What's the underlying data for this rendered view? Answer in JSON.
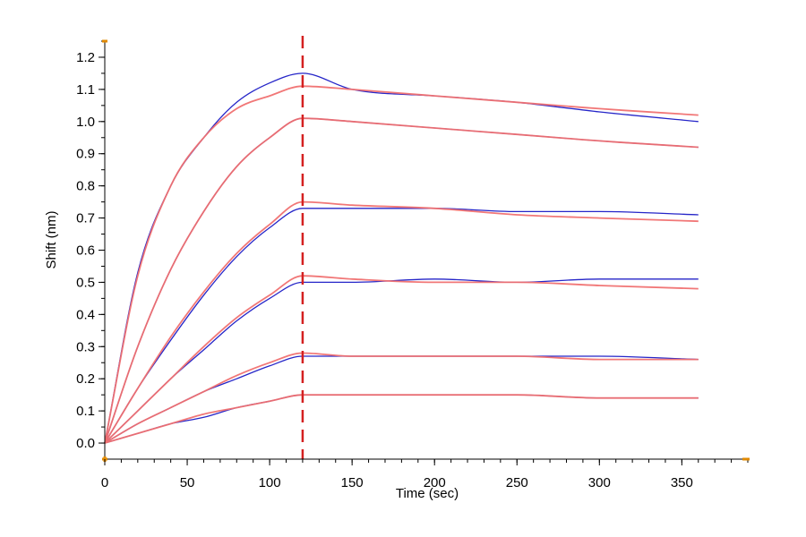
{
  "chart_data": {
    "type": "line",
    "title": "",
    "xlabel": "Time (sec)",
    "ylabel": "Shift (nm)",
    "xlim": [
      0,
      390
    ],
    "ylim": [
      -0.05,
      1.25
    ],
    "x_ticks": [
      0,
      50,
      100,
      150,
      200,
      250,
      300,
      350
    ],
    "y_ticks": [
      0.0,
      0.1,
      0.2,
      0.3,
      0.4,
      0.5,
      0.6,
      0.7,
      0.8,
      0.9,
      1.0,
      1.1,
      1.2
    ],
    "x_minor_step": 10,
    "y_minor_step": 0.05,
    "marker_line": {
      "x": 120,
      "color": "#d42020",
      "style": "dashed"
    },
    "axis_accent_color": "#e08a00",
    "colors": {
      "measured": "#2525c8",
      "fit": "#f07070"
    },
    "series": [
      {
        "kind": "measured",
        "color": "#2525c8",
        "x": [
          0,
          20,
          40,
          60,
          80,
          100,
          120,
          150,
          200,
          250,
          300,
          360
        ],
        "y": [
          0.0,
          0.53,
          0.8,
          0.95,
          1.06,
          1.12,
          1.15,
          1.1,
          1.08,
          1.06,
          1.03,
          1.0
        ]
      },
      {
        "kind": "fit",
        "color": "#f07070",
        "x": [
          0,
          20,
          40,
          60,
          80,
          100,
          120,
          150,
          200,
          250,
          300,
          360
        ],
        "y": [
          0.0,
          0.52,
          0.8,
          0.95,
          1.04,
          1.08,
          1.11,
          1.1,
          1.08,
          1.06,
          1.04,
          1.02
        ]
      },
      {
        "kind": "measured",
        "color": "#2525c8",
        "x": [
          0,
          20,
          40,
          60,
          80,
          100,
          120,
          150,
          200,
          250,
          300,
          360
        ],
        "y": [
          0.0,
          0.3,
          0.54,
          0.72,
          0.86,
          0.95,
          1.01,
          1.0,
          0.98,
          0.96,
          0.94,
          0.92
        ]
      },
      {
        "kind": "fit",
        "color": "#f07070",
        "x": [
          0,
          20,
          40,
          60,
          80,
          100,
          120,
          150,
          200,
          250,
          300,
          360
        ],
        "y": [
          0.0,
          0.3,
          0.54,
          0.72,
          0.86,
          0.95,
          1.01,
          1.0,
          0.98,
          0.96,
          0.94,
          0.92
        ]
      },
      {
        "kind": "measured",
        "color": "#2525c8",
        "x": [
          0,
          20,
          40,
          60,
          80,
          100,
          120,
          150,
          200,
          250,
          300,
          360
        ],
        "y": [
          0.0,
          0.17,
          0.32,
          0.46,
          0.58,
          0.67,
          0.73,
          0.73,
          0.73,
          0.72,
          0.72,
          0.71
        ]
      },
      {
        "kind": "fit",
        "color": "#f07070",
        "x": [
          0,
          20,
          40,
          60,
          80,
          100,
          120,
          150,
          200,
          250,
          300,
          360
        ],
        "y": [
          0.0,
          0.17,
          0.33,
          0.47,
          0.59,
          0.68,
          0.75,
          0.74,
          0.73,
          0.71,
          0.7,
          0.69
        ]
      },
      {
        "kind": "measured",
        "color": "#2525c8",
        "x": [
          0,
          20,
          40,
          60,
          80,
          100,
          120,
          150,
          200,
          250,
          300,
          360
        ],
        "y": [
          0.0,
          0.1,
          0.2,
          0.29,
          0.38,
          0.45,
          0.5,
          0.5,
          0.51,
          0.5,
          0.51,
          0.51
        ]
      },
      {
        "kind": "fit",
        "color": "#f07070",
        "x": [
          0,
          20,
          40,
          60,
          80,
          100,
          120,
          150,
          200,
          250,
          300,
          360
        ],
        "y": [
          0.0,
          0.1,
          0.2,
          0.3,
          0.39,
          0.46,
          0.52,
          0.51,
          0.5,
          0.5,
          0.49,
          0.48
        ]
      },
      {
        "kind": "measured",
        "color": "#2525c8",
        "x": [
          0,
          20,
          40,
          60,
          80,
          100,
          120,
          150,
          200,
          250,
          300,
          360
        ],
        "y": [
          0.0,
          0.06,
          0.11,
          0.16,
          0.2,
          0.24,
          0.27,
          0.27,
          0.27,
          0.27,
          0.27,
          0.26
        ]
      },
      {
        "kind": "fit",
        "color": "#f07070",
        "x": [
          0,
          20,
          40,
          60,
          80,
          100,
          120,
          150,
          200,
          250,
          300,
          360
        ],
        "y": [
          0.0,
          0.06,
          0.11,
          0.16,
          0.21,
          0.25,
          0.28,
          0.27,
          0.27,
          0.27,
          0.26,
          0.26
        ]
      },
      {
        "kind": "measured",
        "color": "#2525c8",
        "x": [
          0,
          20,
          40,
          60,
          80,
          100,
          120,
          150,
          200,
          250,
          300,
          360
        ],
        "y": [
          0.0,
          0.03,
          0.06,
          0.08,
          0.11,
          0.13,
          0.15,
          0.15,
          0.15,
          0.15,
          0.14,
          0.14
        ]
      },
      {
        "kind": "fit",
        "color": "#f07070",
        "x": [
          0,
          20,
          40,
          60,
          80,
          100,
          120,
          150,
          200,
          250,
          300,
          360
        ],
        "y": [
          0.0,
          0.03,
          0.06,
          0.09,
          0.11,
          0.13,
          0.15,
          0.15,
          0.15,
          0.15,
          0.14,
          0.14
        ]
      }
    ]
  }
}
